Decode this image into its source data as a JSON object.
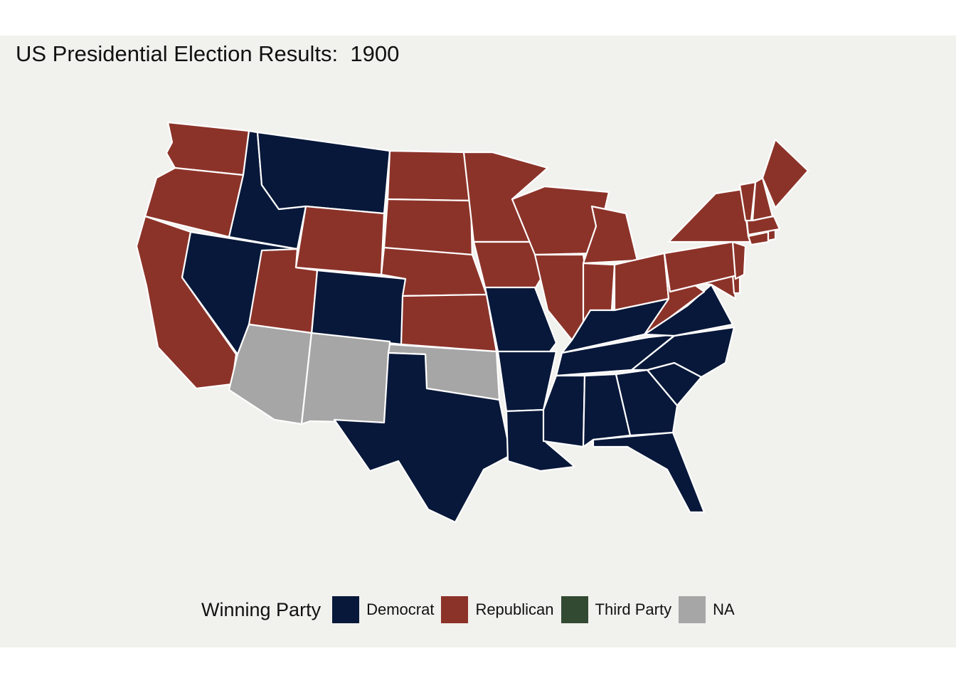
{
  "title": "US Presidential Election Results:  1900",
  "legend": {
    "title": "Winning Party",
    "items": [
      {
        "label": "Democrat",
        "color": "#08183a"
      },
      {
        "label": "Republican",
        "color": "#8c3329"
      },
      {
        "label": "Third Party",
        "color": "#324a32"
      },
      {
        "label": "NA",
        "color": "#a6a6a6"
      }
    ]
  },
  "map_data": {
    "year": 1900,
    "results": {
      "washington": "Republican",
      "oregon": "Republican",
      "california": "Republican",
      "idaho": "Democrat",
      "nevada": "Democrat",
      "montana": "Democrat",
      "wyoming": "Republican",
      "utah": "Republican",
      "colorado": "Democrat",
      "arizona": "NA",
      "new-mexico": "NA",
      "oklahoma": "NA",
      "north-dakota": "Republican",
      "south-dakota": "Republican",
      "nebraska": "Republican",
      "kansas": "Republican",
      "texas": "Democrat",
      "minnesota": "Republican",
      "iowa": "Republican",
      "missouri": "Democrat",
      "arkansas": "Democrat",
      "louisiana": "Democrat",
      "wisconsin": "Republican",
      "illinois": "Republican",
      "michigan": "Republican",
      "indiana": "Republican",
      "ohio": "Republican",
      "kentucky": "Democrat",
      "tennessee": "Democrat",
      "mississippi": "Democrat",
      "alabama": "Democrat",
      "georgia": "Democrat",
      "florida": "Democrat",
      "south-carolina": "Democrat",
      "north-carolina": "Democrat",
      "virginia": "Democrat",
      "west-virginia": "Republican",
      "maryland": "Republican",
      "delaware": "Republican",
      "pennsylvania": "Republican",
      "new-jersey": "Republican",
      "new-york": "Republican",
      "connecticut": "Republican",
      "rhode-island": "Republican",
      "massachusetts": "Republican",
      "vermont": "Republican",
      "new-hampshire": "Republican",
      "maine": "Republican"
    }
  }
}
